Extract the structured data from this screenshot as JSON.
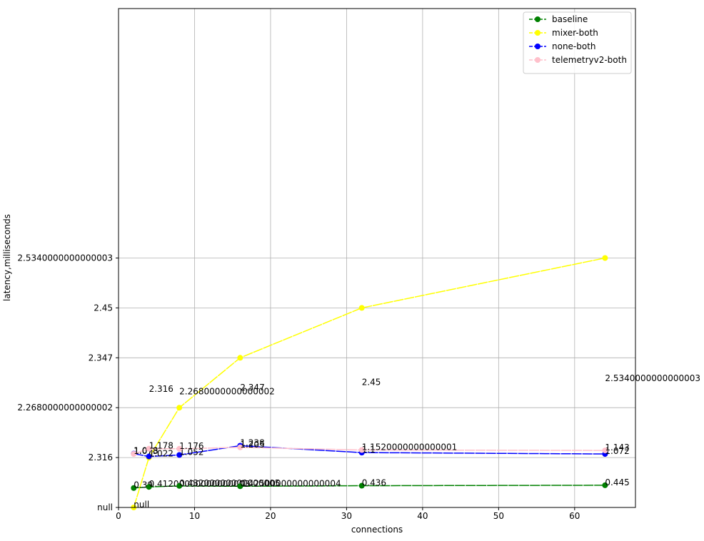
{
  "chart_data": {
    "type": "line",
    "xlabel": "connections",
    "ylabel": "latency,milliseconds",
    "x": [
      2,
      4,
      8,
      16,
      32,
      64
    ],
    "xlim": [
      0,
      68
    ],
    "xticks": [
      0,
      10,
      20,
      30,
      40,
      50,
      60
    ],
    "ylim": [
      0,
      10
    ],
    "yticks": [
      {
        "value": 0,
        "label": "null"
      },
      {
        "value": 1,
        "label": "2.316"
      },
      {
        "value": 2,
        "label": "2.2680000000000002"
      },
      {
        "value": 3,
        "label": "2.347"
      },
      {
        "value": 4,
        "label": "2.45"
      },
      {
        "value": 5,
        "label": "2.5340000000000003"
      }
    ],
    "grid": true,
    "legend": "upper right",
    "series": [
      {
        "name": "baseline",
        "color": "green",
        "values": [
          0.39,
          0.41200000000000003,
          0.43200000000000005,
          0.42500000000000004,
          0.436,
          0.445
        ]
      },
      {
        "name": "mixer-both",
        "color": "yellow",
        "categorical": true,
        "values": [
          "null",
          2.316,
          2.2680000000000002,
          2.347,
          2.45,
          2.5340000000000003
        ]
      },
      {
        "name": "none-both",
        "color": "blue",
        "values": [
          1.078,
          1.022,
          1.052,
          1.238,
          1.1,
          1.072
        ]
      },
      {
        "name": "telemetryv2-both",
        "color": "pink",
        "values": [
          1.073,
          1.178,
          1.176,
          1.205,
          1.1520000000000001,
          1.143
        ]
      }
    ]
  }
}
